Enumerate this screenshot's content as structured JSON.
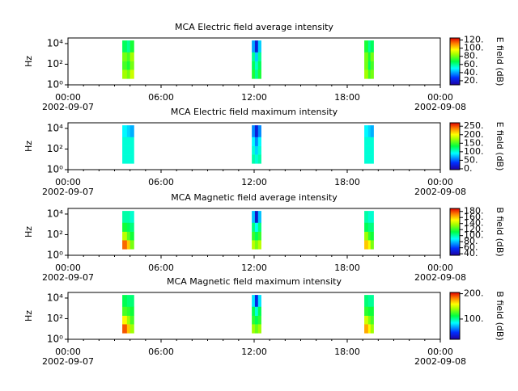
{
  "chart_data": [
    {
      "type": "spectrogram",
      "title": "MCA  Electric field average intensity",
      "ylabel": "Hz",
      "log_y": true,
      "xlim": [
        0,
        24
      ],
      "ylim": [
        1,
        35000
      ],
      "xticks": [
        {
          "value": 0,
          "label": "00:00"
        },
        {
          "value": 6,
          "label": "06:00"
        },
        {
          "value": 12,
          "label": "12:00"
        },
        {
          "value": 18,
          "label": "18:00"
        },
        {
          "value": 24,
          "label": "00:00"
        }
      ],
      "xdates": [
        {
          "value": 0,
          "label": "2002-09-07"
        },
        {
          "value": 24,
          "label": "2002-09-08"
        }
      ],
      "yticks": [
        {
          "value": 1,
          "label": "10⁰"
        },
        {
          "value": 100,
          "label": "10²"
        },
        {
          "value": 10000,
          "label": "10⁴"
        }
      ],
      "y_bins": [
        4,
        30,
        200,
        1500,
        20000
      ],
      "blocks": [
        {
          "x_bins": [
            3.5,
            3.8,
            4.0,
            4.25
          ],
          "z": [
            [
              85,
              80,
              90
            ],
            [
              75,
              70,
              80
            ],
            [
              80,
              75,
              85
            ],
            [
              65,
              60,
              70
            ]
          ]
        },
        {
          "x_bins": [
            11.85,
            12.05,
            12.25,
            12.45
          ],
          "z": [
            [
              70,
              60,
              70
            ],
            [
              65,
              55,
              65
            ],
            [
              60,
              45,
              60
            ],
            [
              40,
              20,
              45
            ]
          ]
        },
        {
          "x_bins": [
            19.1,
            19.35,
            19.5,
            19.7
          ],
          "z": [
            [
              85,
              75,
              80
            ],
            [
              80,
              65,
              75
            ],
            [
              80,
              70,
              80
            ],
            [
              70,
              60,
              65
            ]
          ]
        }
      ],
      "colorbar_label": "E field (dB)",
      "clim": [
        10,
        125
      ],
      "cticks": [
        {
          "value": 20,
          "label": "20."
        },
        {
          "value": 40,
          "label": "40."
        },
        {
          "value": 60,
          "label": "60."
        },
        {
          "value": 80,
          "label": "80."
        },
        {
          "value": 100,
          "label": "100."
        },
        {
          "value": 120,
          "label": "120."
        }
      ]
    },
    {
      "type": "spectrogram",
      "title": "MCA  Electric field maximum intensity",
      "ylabel": "Hz",
      "log_y": true,
      "xlim": [
        0,
        24
      ],
      "ylim": [
        1,
        35000
      ],
      "xticks": [
        {
          "value": 0,
          "label": "00:00"
        },
        {
          "value": 6,
          "label": "06:00"
        },
        {
          "value": 12,
          "label": "12:00"
        },
        {
          "value": 18,
          "label": "18:00"
        },
        {
          "value": 24,
          "label": "00:00"
        }
      ],
      "xdates": [
        {
          "value": 0,
          "label": "2002-09-07"
        },
        {
          "value": 24,
          "label": "2002-09-08"
        }
      ],
      "yticks": [
        {
          "value": 1,
          "label": "10⁰"
        },
        {
          "value": 100,
          "label": "10²"
        },
        {
          "value": 10000,
          "label": "10⁴"
        }
      ],
      "y_bins": [
        4,
        30,
        200,
        1500,
        20000
      ],
      "blocks": [
        {
          "x_bins": [
            3.5,
            3.8,
            4.0,
            4.25
          ],
          "z": [
            [
              100,
              100,
              100
            ],
            [
              100,
              100,
              100
            ],
            [
              100,
              100,
              100
            ],
            [
              90,
              80,
              70
            ]
          ]
        },
        {
          "x_bins": [
            11.85,
            12.05,
            12.25,
            12.45
          ],
          "z": [
            [
              110,
              100,
              110
            ],
            [
              100,
              80,
              100
            ],
            [
              90,
              60,
              90
            ],
            [
              60,
              20,
              60
            ]
          ]
        },
        {
          "x_bins": [
            19.1,
            19.35,
            19.5,
            19.7
          ],
          "z": [
            [
              100,
              100,
              100
            ],
            [
              100,
              100,
              100
            ],
            [
              100,
              100,
              100
            ],
            [
              90,
              80,
              70
            ]
          ]
        }
      ],
      "colorbar_label": "E field (dB)",
      "clim": [
        -5,
        270
      ],
      "cticks": [
        {
          "value": 0,
          "label": "0."
        },
        {
          "value": 50,
          "label": "50."
        },
        {
          "value": 100,
          "label": "100."
        },
        {
          "value": 150,
          "label": "150."
        },
        {
          "value": 200,
          "label": "200."
        },
        {
          "value": 250,
          "label": "250."
        }
      ]
    },
    {
      "type": "spectrogram",
      "title": "MCA  Magnetic field average intensity",
      "ylabel": "Hz",
      "log_y": true,
      "xlim": [
        0,
        24
      ],
      "ylim": [
        1,
        35000
      ],
      "xticks": [
        {
          "value": 0,
          "label": "00:00"
        },
        {
          "value": 6,
          "label": "06:00"
        },
        {
          "value": 12,
          "label": "12:00"
        },
        {
          "value": 18,
          "label": "18:00"
        },
        {
          "value": 24,
          "label": "00:00"
        }
      ],
      "xdates": [
        {
          "value": 0,
          "label": "2002-09-07"
        },
        {
          "value": 24,
          "label": "2002-09-08"
        }
      ],
      "yticks": [
        {
          "value": 1,
          "label": "10⁰"
        },
        {
          "value": 100,
          "label": "10²"
        },
        {
          "value": 10000,
          "label": "10⁴"
        }
      ],
      "y_bins": [
        4,
        30,
        200,
        1500,
        20000
      ],
      "blocks": [
        {
          "x_bins": [
            3.5,
            3.8,
            4.0,
            4.25
          ],
          "z": [
            [
              175,
              160,
              130
            ],
            [
              140,
              125,
              115
            ],
            [
              115,
              110,
              105
            ],
            [
              100,
              100,
              95
            ]
          ]
        },
        {
          "x_bins": [
            11.85,
            12.05,
            12.25,
            12.45
          ],
          "z": [
            [
              140,
              130,
              140
            ],
            [
              120,
              110,
              120
            ],
            [
              105,
              90,
              105
            ],
            [
              80,
              45,
              80
            ]
          ]
        },
        {
          "x_bins": [
            19.1,
            19.35,
            19.5,
            19.7
          ],
          "z": [
            [
              160,
              150,
              130
            ],
            [
              135,
              120,
              115
            ],
            [
              110,
              105,
              105
            ],
            [
              100,
              95,
              95
            ]
          ]
        }
      ],
      "colorbar_label": "B field (dB)",
      "clim": [
        35,
        190
      ],
      "cticks": [
        {
          "value": 40,
          "label": "40."
        },
        {
          "value": 60,
          "label": "60."
        },
        {
          "value": 80,
          "label": "80."
        },
        {
          "value": 100,
          "label": "100."
        },
        {
          "value": 120,
          "label": "120."
        },
        {
          "value": 140,
          "label": "140."
        },
        {
          "value": 160,
          "label": "160."
        },
        {
          "value": 180,
          "label": "180."
        }
      ]
    },
    {
      "type": "spectrogram",
      "title": "MCA  Magnetic field maximum intensity",
      "ylabel": "Hz",
      "log_y": true,
      "xlim": [
        0,
        24
      ],
      "ylim": [
        1,
        35000
      ],
      "xticks": [
        {
          "value": 0,
          "label": "00:00"
        },
        {
          "value": 6,
          "label": "06:00"
        },
        {
          "value": 12,
          "label": "12:00"
        },
        {
          "value": 18,
          "label": "18:00"
        },
        {
          "value": 24,
          "label": "00:00"
        }
      ],
      "xdates": [
        {
          "value": 0,
          "label": "2002-09-07"
        },
        {
          "value": 24,
          "label": "2002-09-08"
        }
      ],
      "yticks": [
        {
          "value": 1,
          "label": "10⁰"
        },
        {
          "value": 100,
          "label": "10²"
        },
        {
          "value": 10000,
          "label": "10⁴"
        }
      ],
      "y_bins": [
        4,
        30,
        200,
        1500,
        20000
      ],
      "blocks": [
        {
          "x_bins": [
            3.5,
            3.8,
            4.0,
            4.25
          ],
          "z": [
            [
              190,
              170,
              140
            ],
            [
              160,
              140,
              125
            ],
            [
              125,
              120,
              115
            ],
            [
              110,
              105,
              105
            ]
          ]
        },
        {
          "x_bins": [
            11.85,
            12.05,
            12.25,
            12.45
          ],
          "z": [
            [
              140,
              130,
              140
            ],
            [
              120,
              110,
              120
            ],
            [
              110,
              90,
              110
            ],
            [
              80,
              40,
              80
            ]
          ]
        },
        {
          "x_bins": [
            19.1,
            19.35,
            19.5,
            19.7
          ],
          "z": [
            [
              175,
              160,
              140
            ],
            [
              150,
              135,
              125
            ],
            [
              120,
              115,
              115
            ],
            [
              105,
              100,
              100
            ]
          ]
        }
      ],
      "colorbar_label": "B field (dB)",
      "clim": [
        20,
        205
      ],
      "cticks": [
        {
          "value": 100,
          "label": "100."
        },
        {
          "value": 200,
          "label": "200."
        }
      ]
    }
  ]
}
